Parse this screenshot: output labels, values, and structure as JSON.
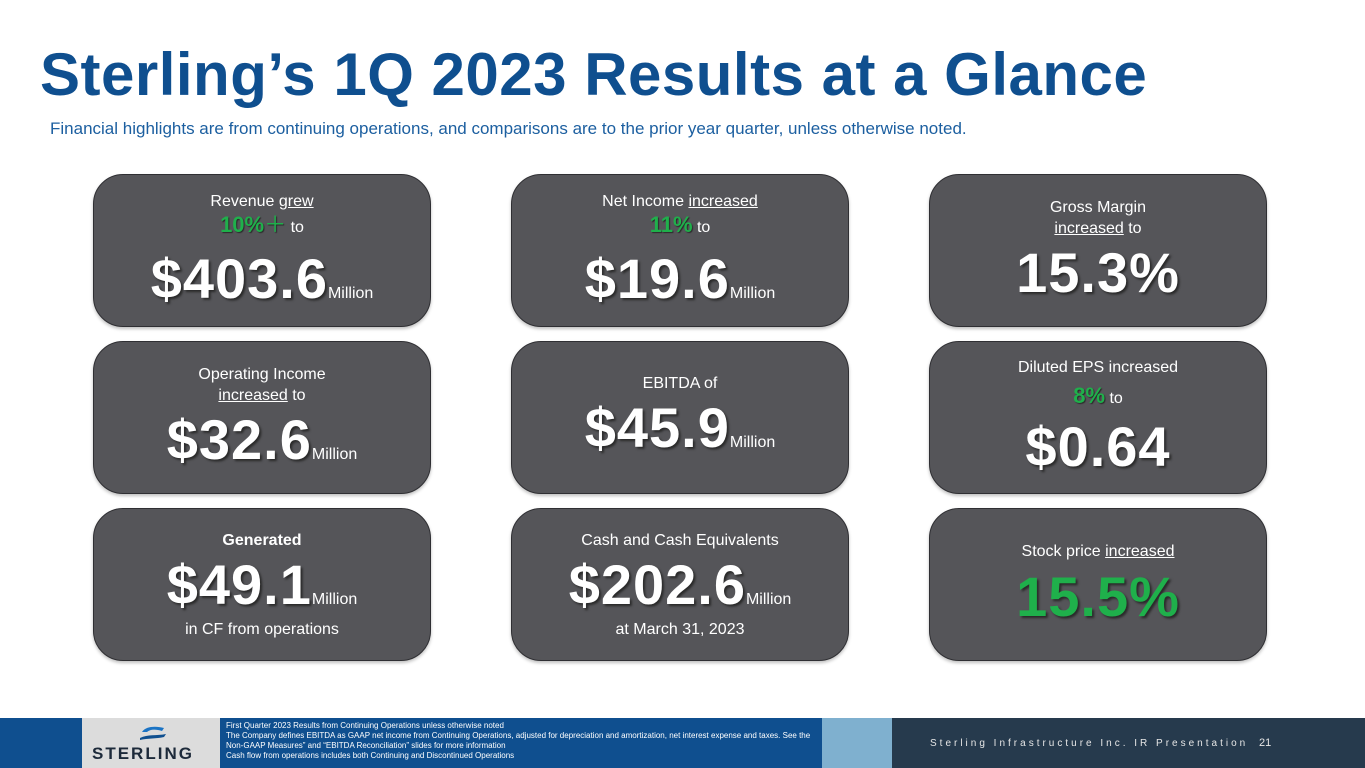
{
  "title": "Sterling’s 1Q 2023 Results at a Glance",
  "subtitle": "Financial highlights are from continuing operations, and comparisons are to the prior year quarter, unless otherwise noted.",
  "cards": {
    "revenue": {
      "line1_prefix": "Revenue ",
      "line1_link": "grew",
      "pct": "10%",
      "plus": "＋",
      "to": " to",
      "value": "$403.6",
      "unit": "Million"
    },
    "net_income": {
      "line1_prefix": "Net Income ",
      "line1_link": "increased",
      "pct": "11%",
      "to": " to",
      "value": "$19.6",
      "unit": "Million"
    },
    "gross_margin": {
      "line1": "Gross Margin",
      "line2_link": "increased",
      "to": " to",
      "value": "15.3%"
    },
    "operating_income": {
      "line1": "Operating Income",
      "line2_link": "increased",
      "to": " to",
      "value": "$32.6",
      "unit": "Million"
    },
    "ebitda": {
      "line1": "EBITDA of",
      "value": "$45.9",
      "unit": "Million"
    },
    "eps": {
      "line1": "Diluted EPS increased",
      "pct": "8%",
      "to": " to",
      "value": "$0.64"
    },
    "cash_flow": {
      "line1": "Generated",
      "value": "$49.1",
      "unit": "Million",
      "line3": "in CF from operations"
    },
    "cash": {
      "line1": "Cash and Cash Equivalents",
      "value": "$202.6",
      "unit": "Million",
      "line3": "at March 31, 2023"
    },
    "stock": {
      "line1_prefix": "Stock price ",
      "line1_link": "increased",
      "value": "15.5%"
    }
  },
  "footer": {
    "logo_text": "STERLING",
    "notes": [
      "First Quarter 2023 Results from Continuing Operations unless otherwise noted",
      "The Company defines EBITDA as GAAP net income from Continuing Operations, adjusted for depreciation and amortization, net interest expense and taxes. See the Non-GAAP Measures” and “EBITDA Reconciliation” slides for more information",
      "Cash flow from operations includes both Continuing and Discontinued Operations"
    ],
    "brand": "Sterling Infrastructure Inc. IR Presentation",
    "page": "21"
  },
  "colors": {
    "title_blue": "#0f4f8f",
    "card_bg": "#555559",
    "green": "#1fb04b",
    "footer_dark": "#263a4d"
  }
}
